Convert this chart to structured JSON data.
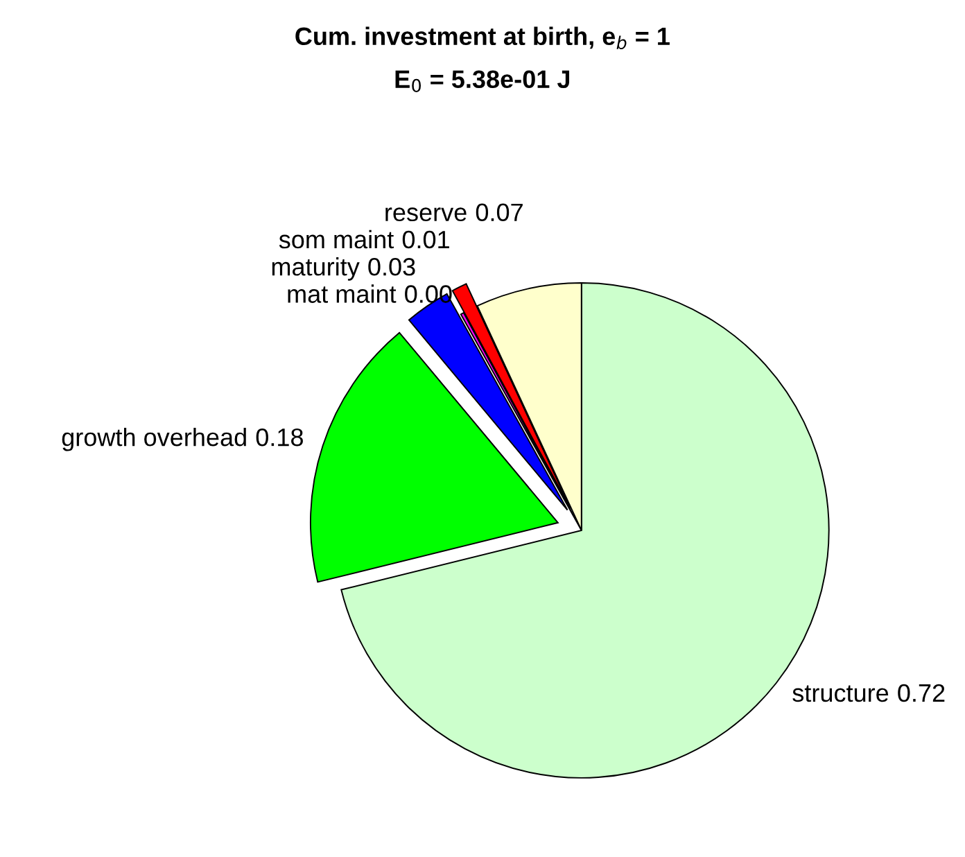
{
  "chart_data": {
    "type": "pie",
    "title": "Cum. investment at birth, e$_{b}$ = 1",
    "subtitle": "E$_{0}$ = 5.38e-01 J",
    "categories": [
      "structure",
      "growth overhead",
      "maturity",
      "mat maint",
      "som maint",
      "reserve"
    ],
    "values": [
      0.72,
      0.18,
      0.03,
      0.002,
      0.01,
      0.07
    ],
    "value_labels": [
      "0.72",
      "0.18",
      "0.03",
      "0.00",
      "0.01",
      "0.07"
    ],
    "colors": [
      "#ccffcc",
      "#00ff00",
      "#0000ff",
      "#ff00ff",
      "#ff0000",
      "#ffffcc"
    ]
  }
}
